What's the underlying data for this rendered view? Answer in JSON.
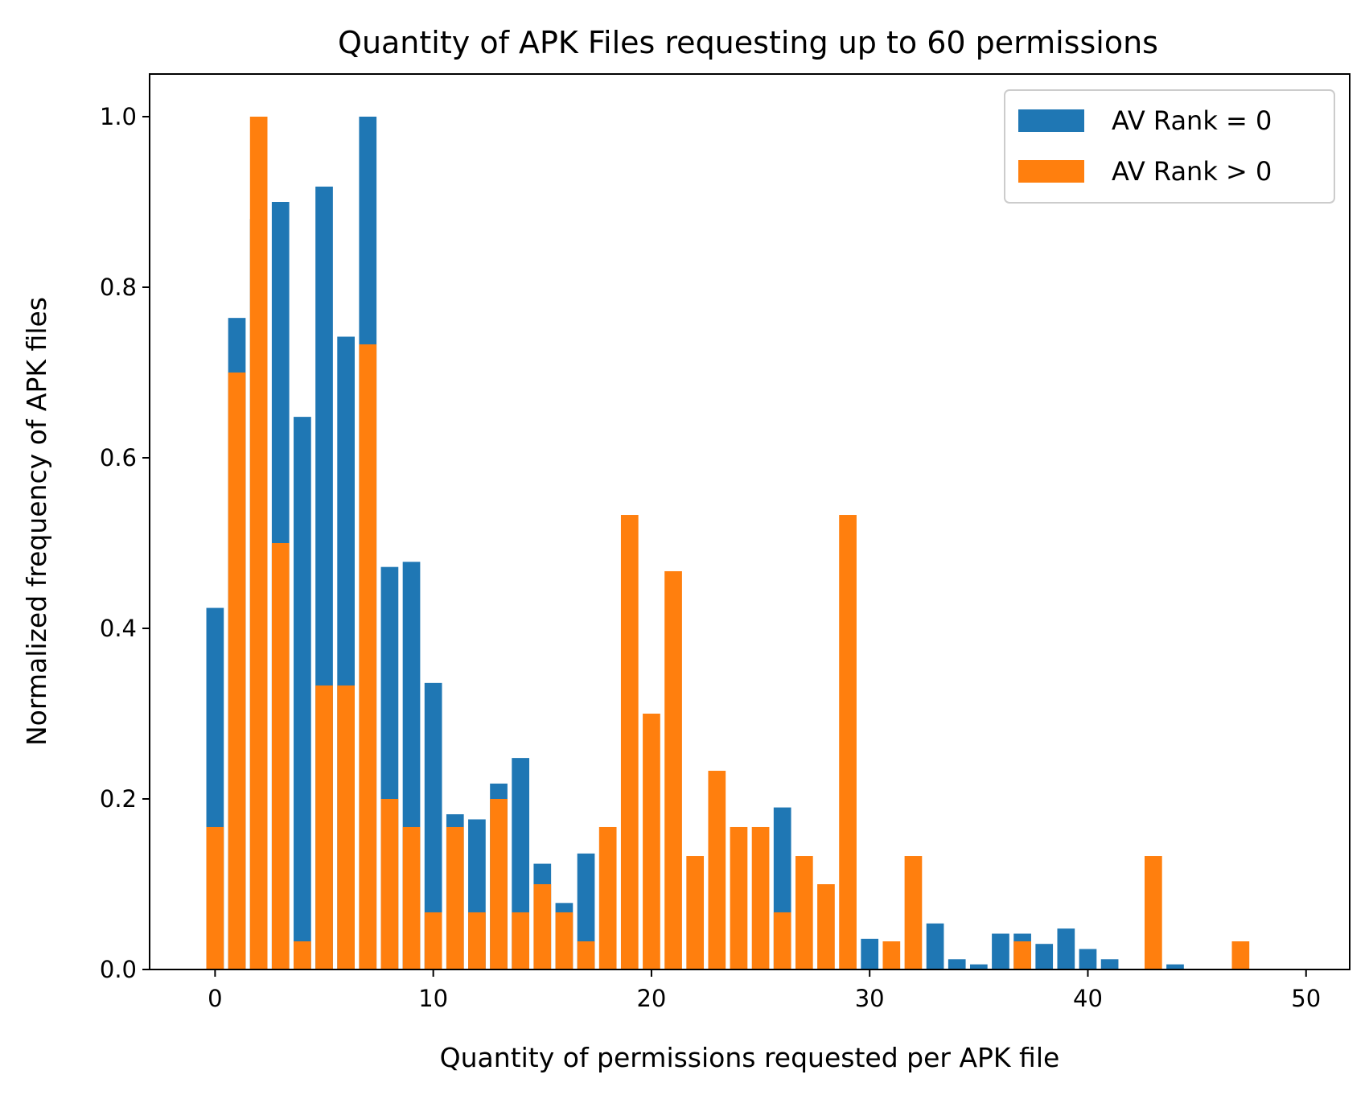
{
  "chart_data": {
    "type": "bar",
    "title": "Quantity of APK Files requesting up to 60 permissions",
    "xlabel": "Quantity of permissions requested per APK file",
    "ylabel": "Normalized frequency of APK files",
    "xlim": [
      -3,
      52
    ],
    "ylim": [
      0,
      1.05
    ],
    "xticks": [
      "0",
      "10",
      "20",
      "30",
      "40",
      "50"
    ],
    "yticks": [
      "0.0",
      "0.2",
      "0.4",
      "0.6",
      "0.8",
      "1.0"
    ],
    "legend_position": "top-right",
    "grid": false,
    "overlay": true,
    "x": [
      0,
      1,
      2,
      3,
      4,
      5,
      6,
      7,
      8,
      9,
      10,
      11,
      12,
      13,
      14,
      15,
      16,
      17,
      18,
      19,
      20,
      21,
      22,
      23,
      24,
      25,
      26,
      27,
      28,
      29,
      30,
      31,
      32,
      33,
      34,
      35,
      36,
      37,
      38,
      39,
      40,
      41,
      42,
      43,
      44,
      45,
      46,
      47
    ],
    "series": [
      {
        "name": "AV Rank = 0",
        "color": "#1f77b4",
        "values": [
          0.424,
          0.764,
          0.88,
          0.9,
          0.648,
          0.918,
          0.742,
          1.0,
          0.472,
          0.478,
          0.336,
          0.182,
          0.176,
          0.218,
          0.248,
          0.124,
          0.078,
          0.136,
          0.0,
          0.0,
          0.0,
          0.0,
          0.0,
          0.0,
          0.0,
          0.0,
          0.19,
          0.0,
          0.0,
          0.0,
          0.036,
          0.0,
          0.0,
          0.054,
          0.012,
          0.006,
          0.042,
          0.042,
          0.03,
          0.048,
          0.024,
          0.012,
          0.0,
          0.0,
          0.006,
          0.0,
          0.0,
          0.0
        ]
      },
      {
        "name": "AV Rank > 0",
        "color": "#ff7f0e",
        "values": [
          0.167,
          0.7,
          1.0,
          0.5,
          0.033,
          0.333,
          0.333,
          0.733,
          0.2,
          0.167,
          0.067,
          0.167,
          0.067,
          0.2,
          0.067,
          0.1,
          0.067,
          0.033,
          0.167,
          0.533,
          0.3,
          0.467,
          0.133,
          0.233,
          0.167,
          0.167,
          0.067,
          0.133,
          0.1,
          0.533,
          0.0,
          0.033,
          0.133,
          0.0,
          0.0,
          0.0,
          0.0,
          0.033,
          0.0,
          0.0,
          0.0,
          0.0,
          0.0,
          0.133,
          0.0,
          0.0,
          0.0,
          0.033
        ]
      }
    ]
  }
}
